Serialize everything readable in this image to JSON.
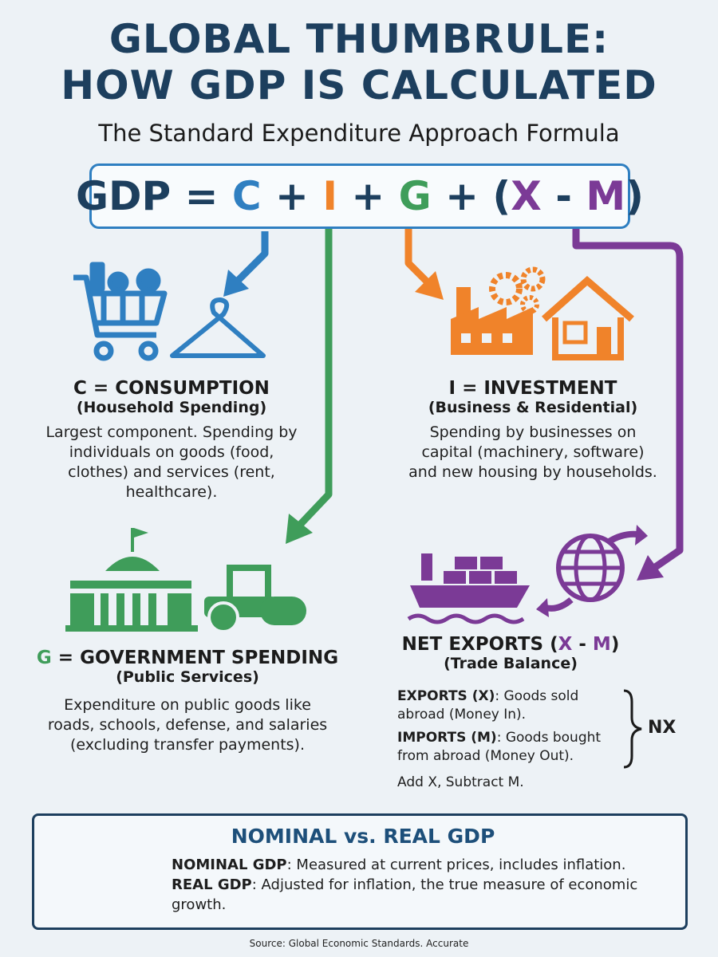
{
  "header": {
    "title_line1": "GLOBAL THUMBRULE:",
    "title_line2": "HOW GDP IS CALCULATED",
    "subtitle": "The Standard Expenditure Approach Formula"
  },
  "formula": {
    "parts": [
      {
        "text": "GDP = ",
        "color": "#1d3f5e"
      },
      {
        "text": "C",
        "color": "#2f7fc1"
      },
      {
        "text": " + ",
        "color": "#1d3f5e"
      },
      {
        "text": "I",
        "color": "#f0832a"
      },
      {
        "text": " + ",
        "color": "#1d3f5e"
      },
      {
        "text": "G",
        "color": "#3f9d5a"
      },
      {
        "text": " + ",
        "color": "#1d3f5e"
      },
      {
        "text": "(",
        "color": "#1d3f5e"
      },
      {
        "text": "X",
        "color": "#7b3a96"
      },
      {
        "text": " - ",
        "color": "#1d3f5e"
      },
      {
        "text": "M",
        "color": "#7b3a96"
      },
      {
        "text": ")",
        "color": "#1d3f5e"
      }
    ]
  },
  "consumption": {
    "title_parts": [
      {
        "text": "C = CONSUMPTION",
        "color": "#1b1b1b"
      }
    ],
    "subtitle": "(Household Spending)",
    "body": "Largest component. Spending by individuals on goods (food, clothes) and services (rent, healthcare)."
  },
  "investment": {
    "title_parts": [
      {
        "text": "I = INVESTMENT",
        "color": "#1b1b1b"
      }
    ],
    "subtitle": "(Business & Residential)",
    "body": "Spending by businesses on capital (machinery, software) and new housing by households."
  },
  "government": {
    "title_parts": [
      {
        "text": "G",
        "color": "#3f9d5a"
      },
      {
        "text": " = GOVERNMENT SPENDING",
        "color": "#1b1b1b"
      }
    ],
    "subtitle": "(Public Services)",
    "body": "Expenditure on public goods like roads, schools, defense, and salaries (excluding transfer payments)."
  },
  "net_exports": {
    "title_parts": [
      {
        "text": "NET EXPORTS (",
        "color": "#1b1b1b"
      },
      {
        "text": "X",
        "color": "#7b3a96"
      },
      {
        "text": " - ",
        "color": "#1b1b1b"
      },
      {
        "text": "M",
        "color": "#7b3a96"
      },
      {
        "text": ")",
        "color": "#1b1b1b"
      }
    ],
    "subtitle": "(Trade Balance)",
    "items": [
      {
        "label": "EXPORTS (X)",
        "text": ": Goods sold abroad (Money In)."
      },
      {
        "label": "IMPORTS (M)",
        "text": ": Goods bought from abroad (Money Out)."
      }
    ],
    "note": "Add X, Subtract M.",
    "brace_label": "NX"
  },
  "nominal_real": {
    "title": "NOMINAL vs. REAL GDP",
    "items": [
      {
        "label": "NOMINAL GDP",
        "text": ": Measured at current prices, includes inflation."
      },
      {
        "label": "REAL GDP",
        "text": ": Adjusted for inflation, the true measure of economic growth."
      }
    ]
  },
  "footer": {
    "source": "Source: Global Economic Standards. Accurate"
  }
}
